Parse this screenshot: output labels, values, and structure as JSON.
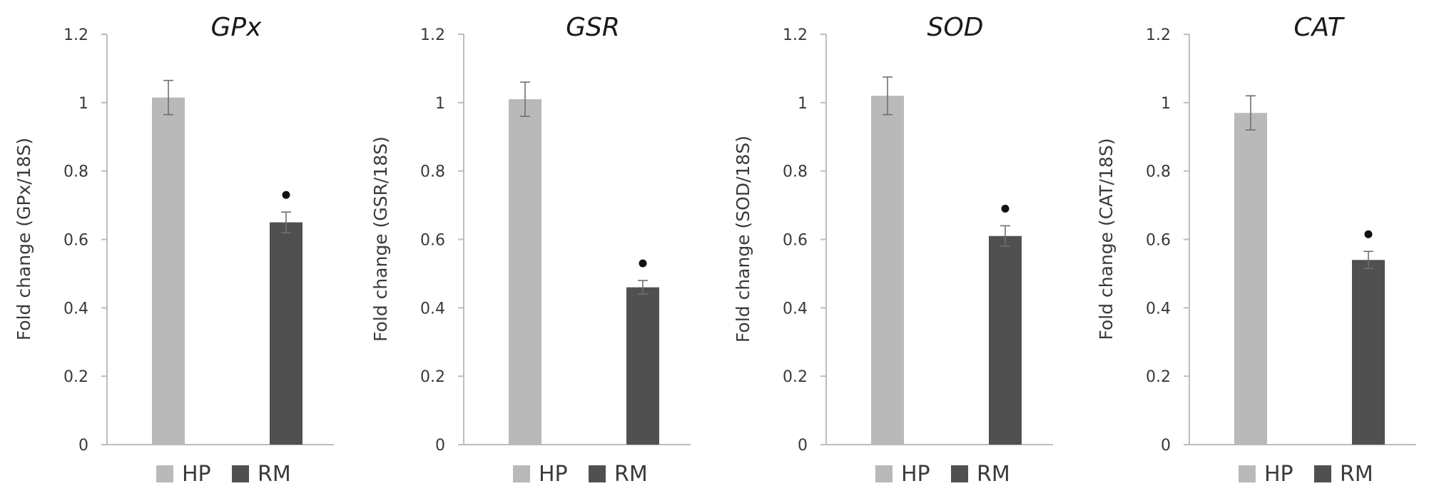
{
  "colors": {
    "HP": "#b9b9b9",
    "RM": "#505050",
    "axis": "#bdbdbd",
    "error": "#707070",
    "marker": "#111111"
  },
  "chart_data": [
    {
      "type": "bar",
      "title": "GPx",
      "ylabel": "Fold change (GPx/18S)",
      "xlabel": "",
      "ylim": [
        0,
        1.2
      ],
      "yticks": [
        "0",
        "0.2",
        "0.4",
        "0.6",
        "0.8",
        "1",
        "1.2"
      ],
      "grid": false,
      "legend": "bottom",
      "series": [
        {
          "name": "HP",
          "values": [
            1.015
          ],
          "error": [
            0.05
          ],
          "significance": false
        },
        {
          "name": "RM",
          "values": [
            0.65
          ],
          "error": [
            0.03
          ],
          "significance": true
        }
      ]
    },
    {
      "type": "bar",
      "title": "GSR",
      "ylabel": "Fold change (GSR/18S)",
      "xlabel": "",
      "ylim": [
        0,
        1.2
      ],
      "yticks": [
        "0",
        "0.2",
        "0.4",
        "0.6",
        "0.8",
        "1",
        "1.2"
      ],
      "grid": false,
      "legend": "bottom",
      "series": [
        {
          "name": "HP",
          "values": [
            1.01
          ],
          "error": [
            0.05
          ],
          "significance": false
        },
        {
          "name": "RM",
          "values": [
            0.46
          ],
          "error": [
            0.02
          ],
          "significance": true
        }
      ]
    },
    {
      "type": "bar",
      "title": "SOD",
      "ylabel": "Fold change (SOD/18S)",
      "xlabel": "",
      "ylim": [
        0,
        1.2
      ],
      "yticks": [
        "0",
        "0.2",
        "0.4",
        "0.6",
        "0.8",
        "1",
        "1.2"
      ],
      "grid": false,
      "legend": "bottom",
      "series": [
        {
          "name": "HP",
          "values": [
            1.02
          ],
          "error": [
            0.055
          ],
          "significance": false
        },
        {
          "name": "RM",
          "values": [
            0.61
          ],
          "error": [
            0.03
          ],
          "significance": true
        }
      ]
    },
    {
      "type": "bar",
      "title": "CAT",
      "ylabel": "Fold change (CAT/18S)",
      "xlabel": "",
      "ylim": [
        0,
        1.2
      ],
      "yticks": [
        "0",
        "0.2",
        "0.4",
        "0.6",
        "0.8",
        "1",
        "1.2"
      ],
      "grid": false,
      "legend": "bottom",
      "series": [
        {
          "name": "HP",
          "values": [
            0.97
          ],
          "error": [
            0.05
          ],
          "significance": false
        },
        {
          "name": "RM",
          "values": [
            0.54
          ],
          "error": [
            0.025
          ],
          "significance": true
        }
      ]
    }
  ]
}
